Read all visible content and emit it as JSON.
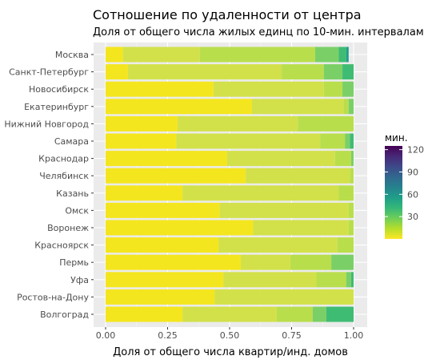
{
  "chart_data": {
    "type": "bar",
    "orientation": "horizontal",
    "stacked": true,
    "title": "Сотношение по удаленности от центра",
    "subtitle": "Доля от общего числа жилых единц по 10-мин. интервалам",
    "xlabel": "Доля от общего числа квартир/инд. домов",
    "ylabel": "",
    "xlim": [
      0,
      1
    ],
    "x_ticks": [
      "0.00",
      "0.25",
      "0.50",
      "0.75",
      "1.00"
    ],
    "grid": true,
    "categories": [
      "Москва",
      "Санкт-Петербург",
      "Новосибирск",
      "Екатеринбург",
      "Нижний Новгород",
      "Самара",
      "Краснодар",
      "Челябинск",
      "Казань",
      "Омск",
      "Воронеж",
      "Красноярск",
      "Пермь",
      "Уфа",
      "Ростов-на-Дону",
      "Волгоград"
    ],
    "legend": {
      "title": "мин.",
      "placement": "right",
      "ticks": [
        "30",
        "60",
        "90",
        "120"
      ],
      "range": [
        0,
        125
      ],
      "colors": [
        "#fde725",
        "#b5de2b",
        "#6ece58",
        "#35b779",
        "#1f9e89",
        "#26828e",
        "#31688e",
        "#3e4989",
        "#482878",
        "#440154"
      ]
    },
    "bars": [
      [
        {
          "v": 0.07,
          "c": "#f4e61e"
        },
        {
          "v": 0.31,
          "c": "#d2e14a"
        },
        {
          "v": 0.465,
          "c": "#b9de4c"
        },
        {
          "v": 0.095,
          "c": "#7ad067"
        },
        {
          "v": 0.03,
          "c": "#3fbc73"
        },
        {
          "v": 0.01,
          "c": "#1f9e89"
        }
      ],
      [
        {
          "v": 0.09,
          "c": "#f4e61e"
        },
        {
          "v": 0.62,
          "c": "#d2e14a"
        },
        {
          "v": 0.17,
          "c": "#b9de4c"
        },
        {
          "v": 0.075,
          "c": "#7ad067"
        },
        {
          "v": 0.045,
          "c": "#3fbc73"
        }
      ],
      [
        {
          "v": 0.435,
          "c": "#f4e61e"
        },
        {
          "v": 0.445,
          "c": "#d2e14a"
        },
        {
          "v": 0.075,
          "c": "#b9de4c"
        },
        {
          "v": 0.045,
          "c": "#7ad067"
        }
      ],
      [
        {
          "v": 0.59,
          "c": "#f4e61e"
        },
        {
          "v": 0.37,
          "c": "#d2e14a"
        },
        {
          "v": 0.02,
          "c": "#b9de4c"
        },
        {
          "v": 0.02,
          "c": "#7ad067"
        }
      ],
      [
        {
          "v": 0.29,
          "c": "#f4e61e"
        },
        {
          "v": 0.485,
          "c": "#d2e14a"
        },
        {
          "v": 0.225,
          "c": "#b9de4c"
        }
      ],
      [
        {
          "v": 0.285,
          "c": "#f4e61e"
        },
        {
          "v": 0.58,
          "c": "#d2e14a"
        },
        {
          "v": 0.1,
          "c": "#b9de4c"
        },
        {
          "v": 0.02,
          "c": "#7ad067"
        },
        {
          "v": 0.015,
          "c": "#3fbc73"
        }
      ],
      [
        {
          "v": 0.49,
          "c": "#f4e61e"
        },
        {
          "v": 0.435,
          "c": "#d2e14a"
        },
        {
          "v": 0.065,
          "c": "#b9de4c"
        },
        {
          "v": 0.01,
          "c": "#7ad067"
        }
      ],
      [
        {
          "v": 0.565,
          "c": "#f4e61e"
        },
        {
          "v": 0.42,
          "c": "#d2e14a"
        },
        {
          "v": 0.015,
          "c": "#b9de4c"
        }
      ],
      [
        {
          "v": 0.31,
          "c": "#f4e61e"
        },
        {
          "v": 0.63,
          "c": "#d2e14a"
        },
        {
          "v": 0.06,
          "c": "#b9de4c"
        }
      ],
      [
        {
          "v": 0.46,
          "c": "#f4e61e"
        },
        {
          "v": 0.52,
          "c": "#d2e14a"
        },
        {
          "v": 0.02,
          "c": "#b9de4c"
        }
      ],
      [
        {
          "v": 0.595,
          "c": "#f4e61e"
        },
        {
          "v": 0.385,
          "c": "#d2e14a"
        },
        {
          "v": 0.02,
          "c": "#b9de4c"
        }
      ],
      [
        {
          "v": 0.455,
          "c": "#f4e61e"
        },
        {
          "v": 0.48,
          "c": "#d2e14a"
        },
        {
          "v": 0.065,
          "c": "#b9de4c"
        }
      ],
      [
        {
          "v": 0.545,
          "c": "#f4e61e"
        },
        {
          "v": 0.2,
          "c": "#d2e14a"
        },
        {
          "v": 0.165,
          "c": "#b9de4c"
        },
        {
          "v": 0.09,
          "c": "#7ad067"
        }
      ],
      [
        {
          "v": 0.475,
          "c": "#f4e61e"
        },
        {
          "v": 0.375,
          "c": "#d2e14a"
        },
        {
          "v": 0.12,
          "c": "#b9de4c"
        },
        {
          "v": 0.02,
          "c": "#7ad067"
        },
        {
          "v": 0.01,
          "c": "#3fbc73"
        }
      ],
      [
        {
          "v": 0.44,
          "c": "#f4e61e"
        },
        {
          "v": 0.56,
          "c": "#d2e14a"
        }
      ],
      [
        {
          "v": 0.31,
          "c": "#f4e61e"
        },
        {
          "v": 0.38,
          "c": "#d2e14a"
        },
        {
          "v": 0.145,
          "c": "#b9de4c"
        },
        {
          "v": 0.055,
          "c": "#7ad067"
        },
        {
          "v": 0.11,
          "c": "#3fbc73"
        }
      ]
    ]
  }
}
